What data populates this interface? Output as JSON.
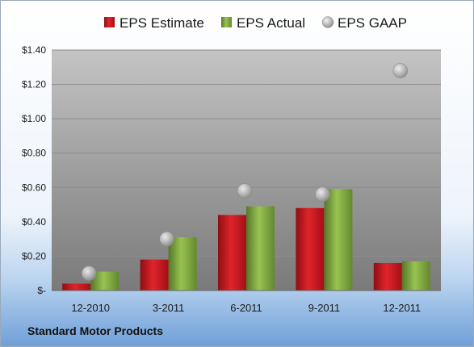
{
  "company": "Standard Motor Products",
  "chart_data": {
    "type": "bar",
    "categories": [
      "12-2010",
      "3-2011",
      "6-2011",
      "9-2011",
      "12-2011"
    ],
    "series": [
      {
        "name": "EPS Estimate",
        "kind": "bar",
        "color": "#c8151d",
        "values": [
          0.04,
          0.18,
          0.44,
          0.48,
          0.16
        ]
      },
      {
        "name": "EPS Actual",
        "kind": "bar",
        "color": "#77a13a",
        "values": [
          0.11,
          0.31,
          0.49,
          0.59,
          0.17
        ]
      },
      {
        "name": "EPS GAAP",
        "kind": "marker",
        "color": "#a9a9a9",
        "values": [
          0.1,
          0.3,
          0.58,
          0.56,
          1.28
        ]
      }
    ],
    "yticks": [
      {
        "value": 0,
        "label": "$-"
      },
      {
        "value": 0.2,
        "label": "$0.20"
      },
      {
        "value": 0.4,
        "label": "$0.40"
      },
      {
        "value": 0.6,
        "label": "$0.60"
      },
      {
        "value": 0.8,
        "label": "$0.80"
      },
      {
        "value": 1.0,
        "label": "$1.00"
      },
      {
        "value": 1.2,
        "label": "$1.20"
      },
      {
        "value": 1.4,
        "label": "$1.40"
      }
    ],
    "ylim": [
      0,
      1.4
    ],
    "grid": true,
    "legend_position": "top"
  }
}
